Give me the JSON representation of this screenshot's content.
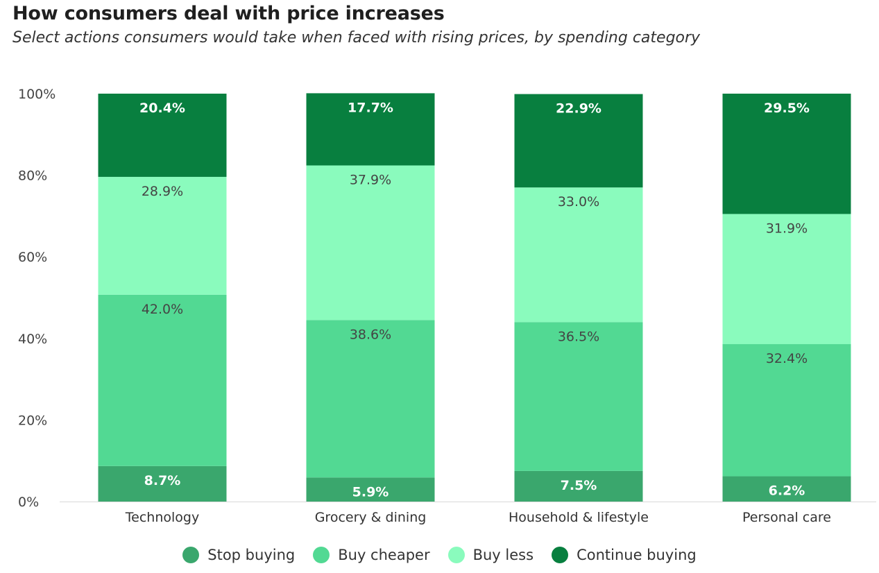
{
  "chart_data": {
    "type": "bar",
    "stacked": true,
    "title": "How consumers deal with price increases",
    "subtitle": "Select actions consumers would take when faced with rising prices, by spending category",
    "categories": [
      "Technology",
      "Grocery & dining",
      "Household & lifestyle",
      "Personal care"
    ],
    "series": [
      {
        "name": "Stop buying",
        "values": [
          8.7,
          5.9,
          7.5,
          6.2
        ],
        "labels": [
          "8.7%",
          "5.9%",
          "7.5%",
          "6.2%"
        ],
        "color": "#3aa76d",
        "label_color": "#ffffff"
      },
      {
        "name": "Buy cheaper",
        "values": [
          42.0,
          38.6,
          36.5,
          32.4
        ],
        "labels": [
          "42.0%",
          "38.6%",
          "36.5%",
          "32.4%"
        ],
        "color": "#52d993",
        "label_color": "#444444"
      },
      {
        "name": "Buy less",
        "values": [
          28.9,
          37.9,
          33.0,
          31.9
        ],
        "labels": [
          "28.9%",
          "37.9%",
          "33.0%",
          "31.9%"
        ],
        "color": "#8afbbd",
        "label_color": "#444444"
      },
      {
        "name": "Continue buying",
        "values": [
          20.4,
          17.7,
          22.9,
          29.5
        ],
        "labels": [
          "20.4%",
          "17.7%",
          "22.9%",
          "29.5%"
        ],
        "color": "#087f3f",
        "label_color": "#ffffff"
      }
    ],
    "y_ticks": [
      "0%",
      "20%",
      "40%",
      "60%",
      "80%",
      "100%"
    ],
    "ylim": [
      0,
      100
    ],
    "grid": false,
    "legend_position": "bottom"
  }
}
